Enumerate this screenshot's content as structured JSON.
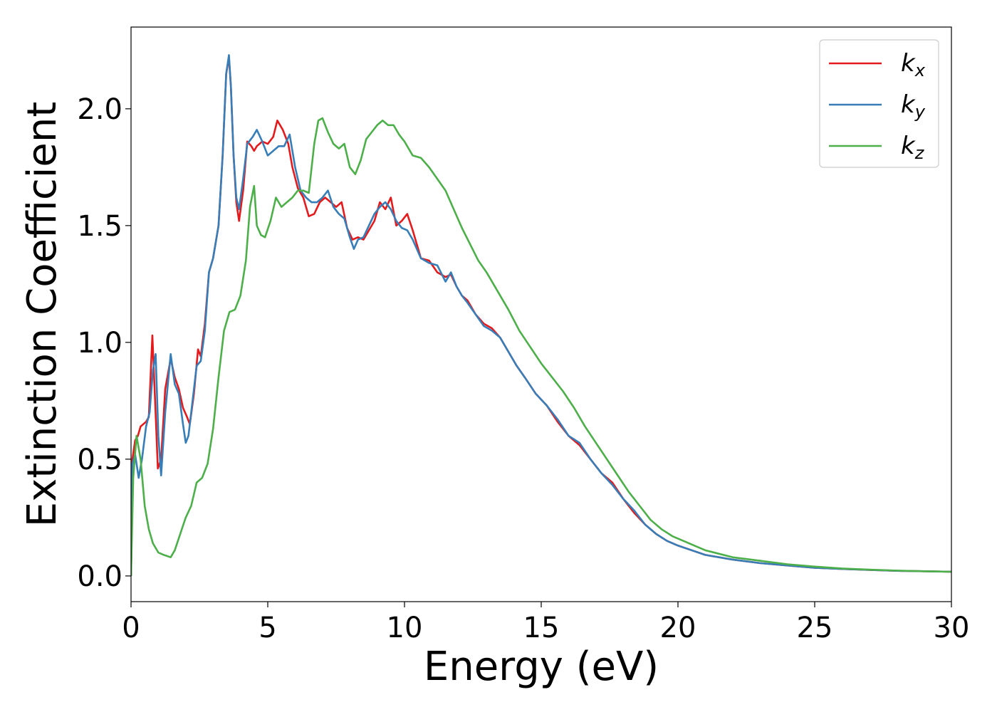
{
  "chart_data": {
    "type": "line",
    "xlabel": "Energy (eV)",
    "ylabel": "Extinction Coefficient",
    "xlim": [
      0,
      30
    ],
    "ylim": [
      -0.11,
      2.35
    ],
    "xticks": [
      0,
      5,
      10,
      15,
      20,
      25,
      30
    ],
    "xtick_labels": [
      "0",
      "5",
      "10",
      "15",
      "20",
      "25",
      "30"
    ],
    "yticks": [
      0.0,
      0.5,
      1.0,
      1.5,
      2.0
    ],
    "ytick_labels": [
      "0.0",
      "0.5",
      "1.0",
      "1.5",
      "2.0"
    ],
    "grid": false,
    "legend_position": "top-right",
    "series": [
      {
        "name": "k",
        "subscript": "x",
        "color": "#e41a1c",
        "x": [
          0,
          0.05,
          0.15,
          0.25,
          0.35,
          0.45,
          0.55,
          0.65,
          0.78,
          0.88,
          0.98,
          1.1,
          1.25,
          1.45,
          1.6,
          1.75,
          1.9,
          2.05,
          2.15,
          2.3,
          2.45,
          2.55,
          2.7,
          2.85,
          3.0,
          3.2,
          3.35,
          3.48,
          3.58,
          3.65,
          3.75,
          3.85,
          3.95,
          4.1,
          4.25,
          4.4,
          4.5,
          4.6,
          4.8,
          5.0,
          5.2,
          5.35,
          5.55,
          5.75,
          5.9,
          6.1,
          6.3,
          6.5,
          6.7,
          6.9,
          7.1,
          7.3,
          7.5,
          7.7,
          7.9,
          8.1,
          8.3,
          8.5,
          8.7,
          8.9,
          9.1,
          9.3,
          9.5,
          9.7,
          9.9,
          10.1,
          10.3,
          10.6,
          10.9,
          11.2,
          11.5,
          11.7,
          11.9,
          12.1,
          12.3,
          12.6,
          12.9,
          13.2,
          13.5,
          13.8,
          14.1,
          14.4,
          14.8,
          15.2,
          15.6,
          16.0,
          16.4,
          16.8,
          17.2,
          17.6,
          18.0,
          18.4,
          18.8,
          19.2,
          19.6,
          20.0,
          20.5,
          21.0,
          22.0,
          23.0,
          24.0,
          25.0,
          26.0,
          27.0,
          28.0,
          29.0,
          30.0
        ],
        "y": [
          0.0,
          0.5,
          0.58,
          0.6,
          0.64,
          0.65,
          0.66,
          0.68,
          1.03,
          0.75,
          0.46,
          0.5,
          0.8,
          0.93,
          0.85,
          0.8,
          0.72,
          0.68,
          0.65,
          0.78,
          0.97,
          0.94,
          1.08,
          1.3,
          1.36,
          1.5,
          1.8,
          2.15,
          2.22,
          2.1,
          1.8,
          1.6,
          1.52,
          1.65,
          1.86,
          1.84,
          1.82,
          1.84,
          1.86,
          1.85,
          1.88,
          1.95,
          1.91,
          1.85,
          1.75,
          1.66,
          1.62,
          1.54,
          1.55,
          1.6,
          1.62,
          1.6,
          1.58,
          1.6,
          1.49,
          1.44,
          1.45,
          1.44,
          1.48,
          1.52,
          1.6,
          1.57,
          1.62,
          1.5,
          1.52,
          1.55,
          1.48,
          1.36,
          1.35,
          1.3,
          1.28,
          1.29,
          1.24,
          1.2,
          1.18,
          1.12,
          1.08,
          1.06,
          1.02,
          0.96,
          0.9,
          0.85,
          0.78,
          0.73,
          0.66,
          0.6,
          0.56,
          0.5,
          0.44,
          0.4,
          0.33,
          0.27,
          0.22,
          0.18,
          0.15,
          0.13,
          0.11,
          0.09,
          0.07,
          0.055,
          0.045,
          0.035,
          0.03,
          0.026,
          0.022,
          0.02,
          0.018
        ]
      },
      {
        "name": "k",
        "subscript": "y",
        "color": "#377eb8",
        "x": [
          0,
          0.05,
          0.15,
          0.28,
          0.4,
          0.55,
          0.68,
          0.8,
          0.9,
          1.0,
          1.1,
          1.25,
          1.45,
          1.6,
          1.75,
          1.9,
          2.0,
          2.1,
          2.25,
          2.4,
          2.55,
          2.7,
          2.85,
          3.0,
          3.2,
          3.35,
          3.48,
          3.58,
          3.65,
          3.75,
          3.85,
          3.95,
          4.1,
          4.25,
          4.45,
          4.6,
          4.8,
          5.0,
          5.2,
          5.4,
          5.6,
          5.8,
          6.0,
          6.2,
          6.4,
          6.6,
          6.8,
          7.0,
          7.2,
          7.4,
          7.6,
          7.8,
          8.0,
          8.15,
          8.3,
          8.5,
          8.7,
          8.9,
          9.1,
          9.3,
          9.5,
          9.7,
          9.9,
          10.1,
          10.3,
          10.6,
          10.9,
          11.2,
          11.5,
          11.7,
          11.9,
          12.1,
          12.3,
          12.6,
          12.9,
          13.2,
          13.5,
          13.8,
          14.1,
          14.4,
          14.8,
          15.2,
          15.6,
          16.0,
          16.4,
          16.8,
          17.2,
          17.6,
          18.0,
          18.4,
          18.8,
          19.2,
          19.6,
          20.0,
          20.5,
          21.0,
          22.0,
          23.0,
          24.0,
          25.0,
          26.0,
          27.0,
          28.0,
          29.0,
          30.0
        ],
        "y": [
          0.0,
          0.48,
          0.52,
          0.42,
          0.5,
          0.64,
          0.7,
          0.88,
          0.95,
          0.6,
          0.43,
          0.7,
          0.95,
          0.82,
          0.78,
          0.65,
          0.57,
          0.6,
          0.75,
          0.9,
          0.92,
          1.05,
          1.3,
          1.36,
          1.5,
          1.8,
          2.15,
          2.23,
          2.1,
          1.8,
          1.62,
          1.57,
          1.7,
          1.85,
          1.88,
          1.91,
          1.86,
          1.8,
          1.82,
          1.84,
          1.84,
          1.89,
          1.75,
          1.65,
          1.62,
          1.6,
          1.6,
          1.62,
          1.65,
          1.58,
          1.55,
          1.53,
          1.45,
          1.4,
          1.44,
          1.45,
          1.5,
          1.55,
          1.58,
          1.6,
          1.57,
          1.52,
          1.49,
          1.48,
          1.44,
          1.36,
          1.34,
          1.33,
          1.26,
          1.3,
          1.24,
          1.2,
          1.17,
          1.12,
          1.07,
          1.05,
          1.02,
          0.96,
          0.9,
          0.85,
          0.78,
          0.73,
          0.67,
          0.6,
          0.57,
          0.5,
          0.44,
          0.39,
          0.33,
          0.28,
          0.22,
          0.18,
          0.15,
          0.13,
          0.11,
          0.09,
          0.07,
          0.055,
          0.045,
          0.035,
          0.03,
          0.026,
          0.022,
          0.02,
          0.018
        ]
      },
      {
        "name": "k",
        "subscript": "z",
        "color": "#4daf4a",
        "x": [
          0,
          0.08,
          0.2,
          0.35,
          0.5,
          0.65,
          0.8,
          1.0,
          1.2,
          1.45,
          1.6,
          1.8,
          2.0,
          2.2,
          2.4,
          2.6,
          2.8,
          3.0,
          3.2,
          3.4,
          3.6,
          3.8,
          4.0,
          4.2,
          4.35,
          4.5,
          4.6,
          4.75,
          4.9,
          5.1,
          5.3,
          5.5,
          5.7,
          5.9,
          6.1,
          6.3,
          6.5,
          6.7,
          6.85,
          7.0,
          7.2,
          7.4,
          7.6,
          7.8,
          8.0,
          8.2,
          8.4,
          8.6,
          8.8,
          9.0,
          9.2,
          9.4,
          9.6,
          9.8,
          10.0,
          10.3,
          10.6,
          10.9,
          11.2,
          11.5,
          11.8,
          12.1,
          12.4,
          12.7,
          13.0,
          13.4,
          13.8,
          14.2,
          14.6,
          15.0,
          15.4,
          15.8,
          16.2,
          16.6,
          17.0,
          17.4,
          17.8,
          18.2,
          18.6,
          19.0,
          19.4,
          19.8,
          20.2,
          20.6,
          21.0,
          22.0,
          23.0,
          24.0,
          25.0,
          26.0,
          27.0,
          28.0,
          29.0,
          30.0
        ],
        "y": [
          0.0,
          0.42,
          0.6,
          0.5,
          0.3,
          0.2,
          0.14,
          0.1,
          0.09,
          0.08,
          0.11,
          0.18,
          0.25,
          0.3,
          0.4,
          0.42,
          0.48,
          0.63,
          0.85,
          1.05,
          1.13,
          1.14,
          1.2,
          1.35,
          1.58,
          1.67,
          1.5,
          1.46,
          1.45,
          1.52,
          1.62,
          1.58,
          1.6,
          1.62,
          1.65,
          1.65,
          1.64,
          1.85,
          1.95,
          1.96,
          1.9,
          1.85,
          1.83,
          1.85,
          1.75,
          1.72,
          1.78,
          1.87,
          1.9,
          1.93,
          1.95,
          1.93,
          1.93,
          1.89,
          1.86,
          1.8,
          1.79,
          1.75,
          1.7,
          1.65,
          1.57,
          1.49,
          1.42,
          1.35,
          1.3,
          1.22,
          1.14,
          1.05,
          0.98,
          0.91,
          0.85,
          0.79,
          0.72,
          0.64,
          0.57,
          0.5,
          0.43,
          0.36,
          0.3,
          0.24,
          0.2,
          0.17,
          0.15,
          0.13,
          0.11,
          0.08,
          0.065,
          0.05,
          0.04,
          0.032,
          0.027,
          0.023,
          0.02,
          0.018
        ]
      }
    ]
  }
}
